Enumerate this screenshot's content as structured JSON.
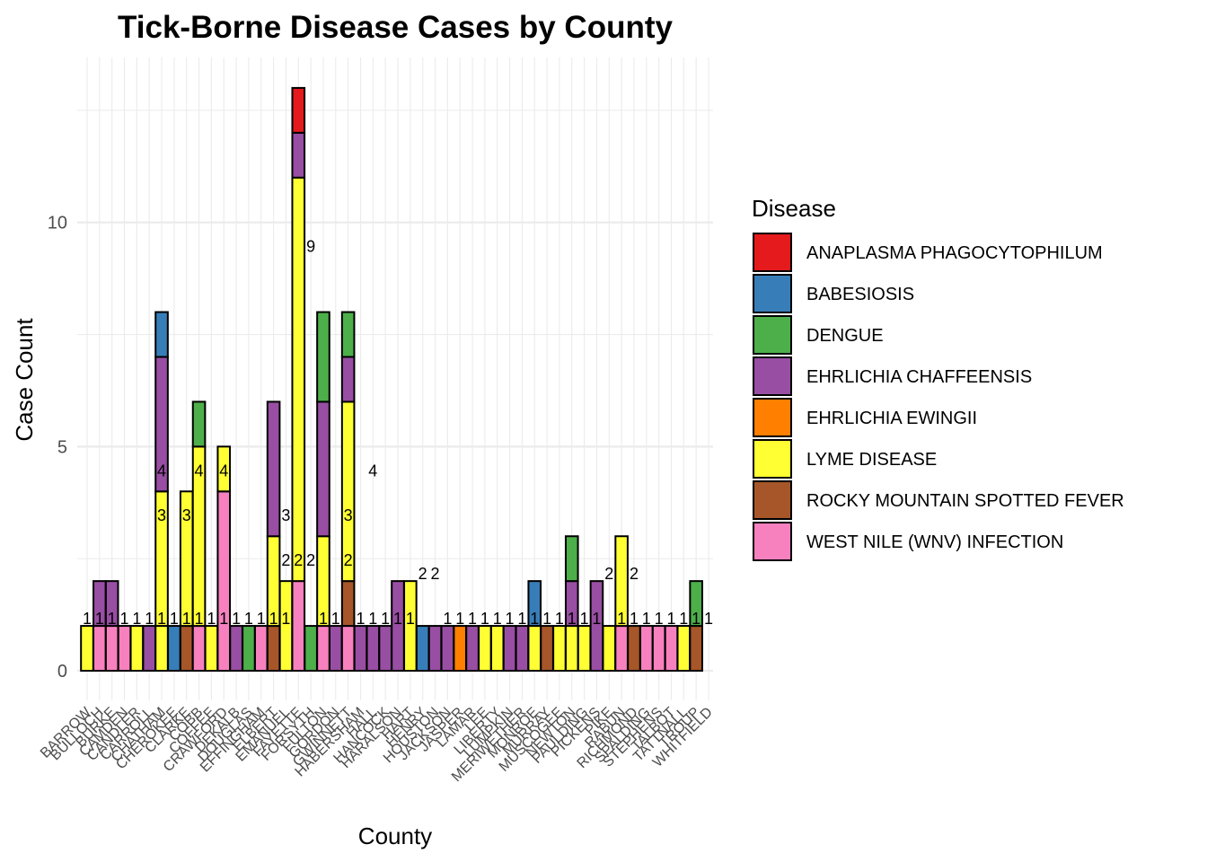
{
  "chart_data": {
    "type": "bar",
    "stacked": true,
    "title": "Tick-Borne Disease Cases by County",
    "xlabel": "County",
    "ylabel": "Case Count",
    "ylim": [
      0,
      13.4
    ],
    "yticks": [
      0,
      5,
      10
    ],
    "grid": true,
    "legend_title": "Disease",
    "legend_position": "right",
    "diseases": [
      {
        "name": "ANAPLASMA PHAGOCYTOPHILUM",
        "color": "#E41A1C"
      },
      {
        "name": "BABESIOSIS",
        "color": "#377EB8"
      },
      {
        "name": "DENGUE",
        "color": "#4DAF4A"
      },
      {
        "name": "EHRLICHIA CHAFFEENSIS",
        "color": "#984EA3"
      },
      {
        "name": "EHRLICHIA EWINGII",
        "color": "#FF7F00"
      },
      {
        "name": "LYME DISEASE",
        "color": "#FFFF33"
      },
      {
        "name": "ROCKY MOUNTAIN SPOTTED FEVER",
        "color": "#A65628"
      },
      {
        "name": "WEST NILE (WNV) INFECTION",
        "color": "#F781BF"
      }
    ],
    "categories": [
      "BARROW",
      "BULLOCH",
      "BURKE",
      "CAMDEN",
      "CANDLER",
      "CARROLL",
      "CHATHAM",
      "CHEROKEE",
      "CLARKE",
      "COBB",
      "COFFEE",
      "CRAWFORD",
      "DEKALB",
      "DOUGLAS",
      "EFFINGHAM",
      "ELBERT",
      "EMANUEL",
      "FAYETTE",
      "FORSYTH",
      "FULTON",
      "GORDON",
      "GWINNETT",
      "HABERSHAM",
      "HALL",
      "HANCOCK",
      "HARALSON",
      "HART",
      "HENRY",
      "HOUSTON",
      "JACKSON",
      "JASPER",
      "LAMAR",
      "LEE",
      "LIBERTY",
      "LUMPKIN",
      "MERIWETHER",
      "MONROE",
      "MURRAY",
      "MUSCOGEE",
      "NEWTON",
      "PAULDING",
      "PICKENS",
      "PIKE",
      "RABUN",
      "RICHMOND",
      "SPALDING",
      "STEPHENS",
      "TALBOT",
      "TATTNALL",
      "TROUP",
      "WHITFIELD"
    ],
    "values": [
      [
        [
          5,
          1
        ]
      ],
      [
        [
          7,
          1
        ],
        [
          3,
          1
        ]
      ],
      [
        [
          7,
          1
        ],
        [
          3,
          1
        ]
      ],
      [
        [
          7,
          1
        ]
      ],
      [
        [
          5,
          1
        ]
      ],
      [
        [
          3,
          1
        ]
      ],
      [
        [
          5,
          1
        ],
        [
          5,
          3
        ],
        [
          3,
          3
        ],
        [
          1,
          1
        ]
      ],
      [
        [
          1,
          1
        ]
      ],
      [
        [
          6,
          1
        ],
        [
          5,
          3
        ]
      ],
      [
        [
          7,
          1
        ],
        [
          5,
          4
        ],
        [
          2,
          1
        ]
      ],
      [
        [
          5,
          1
        ]
      ],
      [
        [
          7,
          4
        ],
        [
          5,
          1
        ]
      ],
      [
        [
          3,
          1
        ]
      ],
      [
        [
          2,
          1
        ]
      ],
      [
        [
          7,
          1
        ]
      ],
      [
        [
          6,
          1
        ],
        [
          5,
          2
        ],
        [
          3,
          3
        ]
      ],
      [
        [
          5,
          2
        ]
      ],
      [
        [
          7,
          2
        ],
        [
          5,
          9
        ],
        [
          3,
          1
        ],
        [
          0,
          1
        ]
      ],
      [
        [
          2,
          1
        ]
      ],
      [
        [
          7,
          1
        ],
        [
          5,
          2
        ],
        [
          3,
          3
        ],
        [
          2,
          2
        ]
      ],
      [
        [
          3,
          1
        ]
      ],
      [
        [
          7,
          1
        ],
        [
          6,
          1
        ],
        [
          5,
          4
        ],
        [
          3,
          1
        ],
        [
          2,
          1
        ]
      ],
      [
        [
          3,
          1
        ]
      ],
      [
        [
          3,
          1
        ]
      ],
      [
        [
          3,
          1
        ]
      ],
      [
        [
          3,
          2
        ]
      ],
      [
        [
          5,
          2
        ]
      ],
      [
        [
          1,
          1
        ]
      ],
      [
        [
          3,
          1
        ]
      ],
      [
        [
          3,
          1
        ]
      ],
      [
        [
          4,
          1
        ]
      ],
      [
        [
          3,
          1
        ]
      ],
      [
        [
          5,
          1
        ]
      ],
      [
        [
          5,
          1
        ]
      ],
      [
        [
          3,
          1
        ]
      ],
      [
        [
          3,
          1
        ]
      ],
      [
        [
          5,
          1
        ],
        [
          1,
          1
        ]
      ],
      [
        [
          6,
          1
        ]
      ],
      [
        [
          5,
          1
        ]
      ],
      [
        [
          5,
          1
        ],
        [
          3,
          1
        ],
        [
          2,
          1
        ]
      ],
      [
        [
          5,
          1
        ]
      ],
      [
        [
          3,
          2
        ]
      ],
      [
        [
          5,
          1
        ]
      ],
      [
        [
          7,
          1
        ],
        [
          5,
          2
        ]
      ],
      [
        [
          6,
          1
        ]
      ],
      [
        [
          7,
          1
        ]
      ],
      [
        [
          7,
          1
        ]
      ],
      [
        [
          7,
          1
        ]
      ],
      [
        [
          5,
          1
        ]
      ],
      [
        [
          6,
          1
        ],
        [
          2,
          1
        ]
      ]
    ],
    "data_labels": [
      {
        "category": "BARROW",
        "text": "1",
        "y": 1
      },
      {
        "category": "BULLOCH",
        "text": "1",
        "y": 1
      },
      {
        "category": "BURKE",
        "text": "1",
        "y": 1
      },
      {
        "category": "CAMDEN",
        "text": "1",
        "y": 1
      },
      {
        "category": "CANDLER",
        "text": "1",
        "y": 1
      },
      {
        "category": "CARROLL",
        "text": "1",
        "y": 1
      },
      {
        "category": "CHATHAM",
        "text": "1",
        "y": 1
      },
      {
        "category": "CHATHAM",
        "text": "3",
        "y": 3.3
      },
      {
        "category": "CHATHAM",
        "text": "4",
        "y": 4.3
      },
      {
        "category": "CHEROKEE",
        "text": "1",
        "y": 1
      },
      {
        "category": "CLARKE",
        "text": "1",
        "y": 1
      },
      {
        "category": "CLARKE",
        "text": "3",
        "y": 3.3
      },
      {
        "category": "COBB",
        "text": "1",
        "y": 1
      },
      {
        "category": "COBB",
        "text": "4",
        "y": 4.3
      },
      {
        "category": "COFFEE",
        "text": "1",
        "y": 1
      },
      {
        "category": "CRAWFORD",
        "text": "1",
        "y": 1
      },
      {
        "category": "CRAWFORD",
        "text": "4",
        "y": 4.3
      },
      {
        "category": "DEKALB",
        "text": "1",
        "y": 1
      },
      {
        "category": "DOUGLAS",
        "text": "1",
        "y": 1
      },
      {
        "category": "EFFINGHAM",
        "text": "1",
        "y": 1
      },
      {
        "category": "ELBERT",
        "text": "1",
        "y": 1
      },
      {
        "category": "EMANUEL",
        "text": "1",
        "y": 1
      },
      {
        "category": "EMANUEL",
        "text": "2",
        "y": 2.3
      },
      {
        "category": "EMANUEL",
        "text": "3",
        "y": 3.3
      },
      {
        "category": "FAYETTE",
        "text": "2",
        "y": 2.3
      },
      {
        "category": "FORSYTH",
        "text": "2",
        "y": 2.3
      },
      {
        "category": "FORSYTH",
        "text": "9",
        "y": 9.3
      },
      {
        "category": "FULTON",
        "text": "1",
        "y": 1
      },
      {
        "category": "GORDON",
        "text": "1",
        "y": 1
      },
      {
        "category": "GWINNETT",
        "text": "2",
        "y": 2.3
      },
      {
        "category": "GWINNETT",
        "text": "3",
        "y": 3.3
      },
      {
        "category": "HABERSHAM",
        "text": "1",
        "y": 1
      },
      {
        "category": "HALL",
        "text": "1",
        "y": 1
      },
      {
        "category": "HALL",
        "text": "4",
        "y": 4.3
      },
      {
        "category": "HANCOCK",
        "text": "1",
        "y": 1
      },
      {
        "category": "HARALSON",
        "text": "1",
        "y": 1
      },
      {
        "category": "HART",
        "text": "1",
        "y": 1
      },
      {
        "category": "HENRY",
        "text": "2",
        "y": 2
      },
      {
        "category": "HOUSTON",
        "text": "2",
        "y": 2
      },
      {
        "category": "JACKSON",
        "text": "1",
        "y": 1
      },
      {
        "category": "JASPER",
        "text": "1",
        "y": 1
      },
      {
        "category": "LAMAR",
        "text": "1",
        "y": 1
      },
      {
        "category": "LEE",
        "text": "1",
        "y": 1
      },
      {
        "category": "LIBERTY",
        "text": "1",
        "y": 1
      },
      {
        "category": "LUMPKIN",
        "text": "1",
        "y": 1
      },
      {
        "category": "MERIWETHER",
        "text": "1",
        "y": 1
      },
      {
        "category": "MONROE",
        "text": "1",
        "y": 1
      },
      {
        "category": "MURRAY",
        "text": "1",
        "y": 1
      },
      {
        "category": "MUSCOGEE",
        "text": "1",
        "y": 1
      },
      {
        "category": "NEWTON",
        "text": "1",
        "y": 1
      },
      {
        "category": "PAULDING",
        "text": "1",
        "y": 1
      },
      {
        "category": "PICKENS",
        "text": "1",
        "y": 1
      },
      {
        "category": "PIKE",
        "text": "2",
        "y": 2
      },
      {
        "category": "RABUN",
        "text": "1",
        "y": 1
      },
      {
        "category": "RICHMOND",
        "text": "1",
        "y": 1
      },
      {
        "category": "RICHMOND",
        "text": "2",
        "y": 2
      },
      {
        "category": "SPALDING",
        "text": "1",
        "y": 1
      },
      {
        "category": "STEPHENS",
        "text": "1",
        "y": 1
      },
      {
        "category": "TALBOT",
        "text": "1",
        "y": 1
      },
      {
        "category": "TATTNALL",
        "text": "1",
        "y": 1
      },
      {
        "category": "TROUP",
        "text": "1",
        "y": 1
      },
      {
        "category": "WHITFIELD",
        "text": "1",
        "y": 1
      }
    ]
  }
}
